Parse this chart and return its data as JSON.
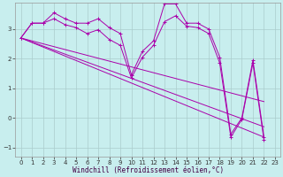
{
  "xlabel": "Windchill (Refroidissement éolien,°C)",
  "background_color": "#c8eeee",
  "grid_color": "#aacccc",
  "line_color": "#aa00aa",
  "xlim": [
    -0.5,
    23.5
  ],
  "ylim": [
    -1.3,
    3.9
  ],
  "yticks": [
    -1,
    0,
    1,
    2,
    3
  ],
  "xticks": [
    0,
    1,
    2,
    3,
    4,
    5,
    6,
    7,
    8,
    9,
    10,
    11,
    12,
    13,
    14,
    15,
    16,
    17,
    18,
    19,
    20,
    21,
    22,
    23
  ],
  "series_zigzag": [
    {
      "x": [
        0,
        1,
        2,
        3,
        4,
        5,
        6,
        7,
        8,
        9,
        10,
        11,
        12,
        13,
        14,
        15,
        16,
        17,
        18,
        19,
        20,
        21,
        22
      ],
      "y": [
        2.7,
        3.2,
        3.2,
        3.55,
        3.35,
        3.2,
        3.2,
        3.35,
        3.05,
        2.85,
        1.45,
        2.25,
        2.6,
        3.85,
        3.85,
        3.2,
        3.2,
        3.0,
        2.05,
        -0.55,
        0.0,
        1.95,
        -0.65
      ]
    },
    {
      "x": [
        0,
        1,
        2,
        3,
        4,
        5,
        6,
        7,
        8,
        9,
        10,
        11,
        12,
        13,
        14,
        15,
        16,
        17,
        18,
        19,
        20,
        21,
        22
      ],
      "y": [
        2.7,
        3.2,
        3.2,
        3.35,
        3.15,
        3.05,
        2.85,
        2.98,
        2.65,
        2.45,
        1.35,
        2.05,
        2.45,
        3.25,
        3.45,
        3.1,
        3.05,
        2.85,
        1.85,
        -0.65,
        -0.05,
        1.85,
        -0.75
      ]
    }
  ],
  "series_trend": [
    {
      "x": [
        0,
        22
      ],
      "y": [
        2.7,
        -0.65
      ]
    },
    {
      "x": [
        0,
        22
      ],
      "y": [
        2.7,
        -0.3
      ]
    },
    {
      "x": [
        0,
        22
      ],
      "y": [
        2.7,
        0.55
      ]
    }
  ]
}
